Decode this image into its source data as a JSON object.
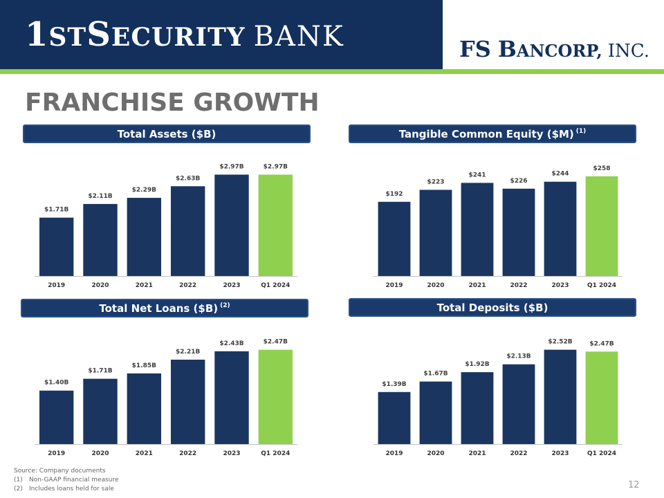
{
  "header": {
    "logo_left_big1": "1",
    "logo_left_small1": "ST ",
    "logo_left_big2": "S",
    "logo_left_small2": "ECURITY",
    "logo_left_thin": "BANK",
    "logo_right_fs": "FS",
    "logo_right_b": "B",
    "logo_right_ancorp": "ANCORP,",
    "logo_right_inc": "INC.",
    "navy": "#13305c",
    "green": "#8fcf48"
  },
  "page_title": "FRANCHISE GROWTH",
  "chart_headers": {
    "assets": "Total Assets ($B)",
    "equity": "Tangible Common Equity ($M)",
    "equity_note": "(1)",
    "loans": "Total Net Loans ($B)",
    "loans_note": "(2)",
    "deposits": "Total Deposits ($B)"
  },
  "chart_data": [
    {
      "id": "assets",
      "type": "bar",
      "title": "Total Assets ($B)",
      "categories": [
        "2019",
        "2020",
        "2021",
        "2022",
        "2023",
        "Q1 2024"
      ],
      "values": [
        1.71,
        2.11,
        2.29,
        2.63,
        2.97,
        2.97
      ],
      "labels": [
        "$1.71B",
        "$2.11B",
        "$2.29B",
        "$2.63B",
        "$2.97B",
        "$2.97B"
      ],
      "ylim": [
        0,
        3.0
      ],
      "highlight_last": true
    },
    {
      "id": "equity",
      "type": "bar",
      "title": "Tangible Common Equity ($M)",
      "categories": [
        "2019",
        "2020",
        "2021",
        "2022",
        "2023",
        "Q1 2024"
      ],
      "values": [
        192,
        223,
        241,
        226,
        244,
        258
      ],
      "labels": [
        "$192",
        "$223",
        "$241",
        "$226",
        "$244",
        "$258"
      ],
      "ylim": [
        0,
        265
      ],
      "highlight_last": true
    },
    {
      "id": "loans",
      "type": "bar",
      "title": "Total Net Loans ($B)",
      "categories": [
        "2019",
        "2020",
        "2021",
        "2022",
        "2023",
        "Q1 2024"
      ],
      "values": [
        1.4,
        1.71,
        1.85,
        2.21,
        2.43,
        2.47
      ],
      "labels": [
        "$1.40B",
        "$1.71B",
        "$1.85B",
        "$2.21B",
        "$2.43B",
        "$2.47B"
      ],
      "ylim": [
        0,
        2.5
      ],
      "highlight_last": true
    },
    {
      "id": "deposits",
      "type": "bar",
      "title": "Total Deposits ($B)",
      "categories": [
        "2019",
        "2020",
        "2021",
        "2022",
        "2023",
        "Q1 2024"
      ],
      "values": [
        1.39,
        1.67,
        1.92,
        2.13,
        2.52,
        2.47
      ],
      "labels": [
        "$1.39B",
        "$1.67B",
        "$1.92B",
        "$2.13B",
        "$2.52B",
        "$2.47B"
      ],
      "ylim": [
        0,
        2.55
      ],
      "highlight_last": true
    }
  ],
  "colors": {
    "bar": "#1a3660",
    "bar_highlight": "#8fd14f",
    "label": "#404040",
    "axis": "#bfbfbf"
  },
  "footnotes": {
    "source": "Source: Company documents",
    "n1_num": "(1)",
    "n1_text": "Non-GAAP financial measure",
    "n2_num": "(2)",
    "n2_text": "Includes loans held for sale"
  },
  "page_number": "12"
}
